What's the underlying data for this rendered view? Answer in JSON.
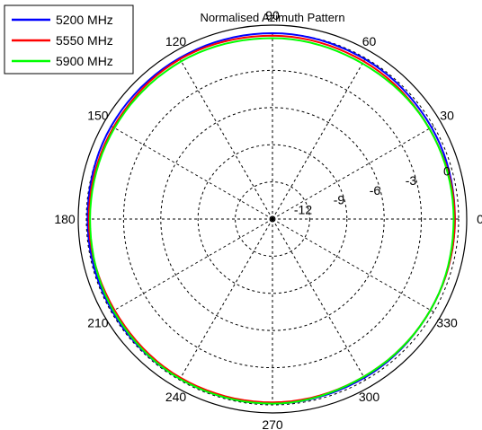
{
  "chart_data": {
    "type": "polar-line",
    "title": "Normalised Azimuth Pattern",
    "angle_ticks": [
      "0",
      "30",
      "60",
      "90",
      "120",
      "150",
      "180",
      "210",
      "240",
      "270",
      "300",
      "330"
    ],
    "radial_ticks": [
      "-12",
      "-9",
      "-6",
      "-3",
      "0"
    ],
    "r_range_db": [
      -15,
      0
    ],
    "grid": true,
    "legend_position": "top-left",
    "angles_deg": [
      0,
      30,
      60,
      90,
      120,
      150,
      180,
      210,
      240,
      270,
      300,
      330
    ],
    "series": [
      {
        "name": "5200 MHz",
        "color": "#0000ff",
        "values_db": [
          -0.3,
          -0.2,
          -0.1,
          0.0,
          0.0,
          0.0,
          -0.1,
          -0.1,
          -0.1,
          -0.1,
          -0.2,
          -0.3
        ]
      },
      {
        "name": "5550 MHz",
        "color": "#ff0000",
        "values_db": [
          -0.3,
          -0.4,
          -0.3,
          -0.2,
          -0.1,
          -0.2,
          -0.2,
          -0.3,
          -0.2,
          -0.2,
          -0.3,
          -0.3
        ]
      },
      {
        "name": "5900 MHz",
        "color": "#00ff00",
        "values_db": [
          -0.4,
          -0.4,
          -0.5,
          -0.4,
          -0.3,
          -0.3,
          -0.3,
          -0.2,
          -0.1,
          -0.1,
          -0.3,
          -0.3
        ]
      }
    ]
  }
}
